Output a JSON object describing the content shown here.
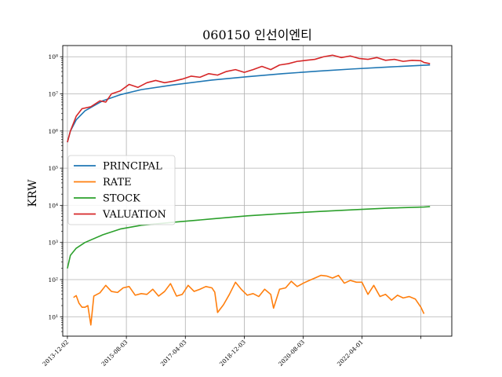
{
  "chart_data": {
    "type": "line",
    "title": "060150 인선이엔티",
    "ylabel": "KRW",
    "xlabel": "",
    "yscale": "log",
    "ylim": [
      3,
      200000000
    ],
    "xlim": [
      "2013-10-15",
      "2024-10-15"
    ],
    "grid": true,
    "legend_position": "center-left",
    "x_ticks": [
      "2013-12-02",
      "2015-08-03",
      "2017-04-03",
      "2018-12-03",
      "2020-08-03",
      "2022-04-01",
      "2023-12-01"
    ],
    "x_tick_labels": [
      "2013-12-02",
      "2015-08-03",
      "2017-04-03",
      "2018-12-03",
      "2020-08-03",
      "2022-04-01",
      ""
    ],
    "y_ticks": [
      10,
      100,
      1000,
      10000,
      100000,
      1000000,
      10000000,
      100000000
    ],
    "y_tick_labels": [
      "10¹",
      "10²",
      "10³",
      "10⁴",
      "10⁵",
      "10⁶",
      "10⁷",
      "10⁸"
    ],
    "series": [
      {
        "name": "PRINCIPAL",
        "color": "#1f77b4",
        "points": [
          [
            "2013-12-02",
            500000
          ],
          [
            "2014-01-02",
            1000000
          ],
          [
            "2014-03-03",
            2000000
          ],
          [
            "2014-06-02",
            3500000
          ],
          [
            "2014-12-01",
            6500000
          ],
          [
            "2015-06-01",
            9500000
          ],
          [
            "2016-01-04",
            13000000
          ],
          [
            "2016-12-01",
            17500000
          ],
          [
            "2018-01-02",
            23500000
          ],
          [
            "2019-01-02",
            29000000
          ],
          [
            "2020-01-02",
            35000000
          ],
          [
            "2021-01-04",
            41000000
          ],
          [
            "2022-01-03",
            47000000
          ],
          [
            "2023-01-02",
            53000000
          ],
          [
            "2024-01-02",
            59000000
          ],
          [
            "2024-03-04",
            60000000
          ]
        ]
      },
      {
        "name": "RATE",
        "color": "#ff7f0e",
        "points": [
          [
            "2014-02-03",
            33
          ],
          [
            "2014-03-03",
            37
          ],
          [
            "2014-04-01",
            23
          ],
          [
            "2014-05-02",
            18
          ],
          [
            "2014-06-02",
            18
          ],
          [
            "2014-07-01",
            20
          ],
          [
            "2014-08-01",
            6
          ],
          [
            "2014-09-01",
            36
          ],
          [
            "2014-11-03",
            44
          ],
          [
            "2015-01-02",
            70
          ],
          [
            "2015-03-02",
            48
          ],
          [
            "2015-05-04",
            45
          ],
          [
            "2015-07-01",
            60
          ],
          [
            "2015-09-01",
            65
          ],
          [
            "2015-11-02",
            38
          ],
          [
            "2016-01-04",
            42
          ],
          [
            "2016-03-02",
            40
          ],
          [
            "2016-05-02",
            55
          ],
          [
            "2016-07-01",
            36
          ],
          [
            "2016-09-01",
            48
          ],
          [
            "2016-11-01",
            78
          ],
          [
            "2017-01-02",
            36
          ],
          [
            "2017-03-02",
            40
          ],
          [
            "2017-05-02",
            70
          ],
          [
            "2017-07-03",
            48
          ],
          [
            "2017-09-01",
            55
          ],
          [
            "2017-11-01",
            65
          ],
          [
            "2018-01-02",
            60
          ],
          [
            "2018-02-01",
            46
          ],
          [
            "2018-03-02",
            13
          ],
          [
            "2018-05-02",
            21
          ],
          [
            "2018-07-02",
            40
          ],
          [
            "2018-09-03",
            85
          ],
          [
            "2018-11-01",
            55
          ],
          [
            "2019-01-02",
            38
          ],
          [
            "2019-03-04",
            42
          ],
          [
            "2019-05-02",
            35
          ],
          [
            "2019-07-01",
            55
          ],
          [
            "2019-09-02",
            40
          ],
          [
            "2019-10-01",
            17
          ],
          [
            "2019-12-02",
            55
          ],
          [
            "2020-02-03",
            60
          ],
          [
            "2020-04-01",
            90
          ],
          [
            "2020-06-01",
            65
          ],
          [
            "2020-08-03",
            80
          ],
          [
            "2020-10-05",
            95
          ],
          [
            "2020-12-01",
            110
          ],
          [
            "2021-02-01",
            130
          ],
          [
            "2021-04-01",
            125
          ],
          [
            "2021-06-01",
            110
          ],
          [
            "2021-08-02",
            130
          ],
          [
            "2021-10-01",
            80
          ],
          [
            "2021-12-01",
            95
          ],
          [
            "2022-02-03",
            85
          ],
          [
            "2022-04-01",
            85
          ],
          [
            "2022-06-02",
            40
          ],
          [
            "2022-08-01",
            70
          ],
          [
            "2022-10-04",
            35
          ],
          [
            "2022-12-01",
            40
          ],
          [
            "2023-02-01",
            28
          ],
          [
            "2023-04-03",
            38
          ],
          [
            "2023-06-01",
            32
          ],
          [
            "2023-08-01",
            35
          ],
          [
            "2023-10-04",
            30
          ],
          [
            "2023-12-01",
            18
          ],
          [
            "2024-01-02",
            12
          ]
        ]
      },
      {
        "name": "STOCK",
        "color": "#2ca02c",
        "points": [
          [
            "2013-12-02",
            200
          ],
          [
            "2014-01-02",
            450
          ],
          [
            "2014-03-03",
            700
          ],
          [
            "2014-06-02",
            1000
          ],
          [
            "2014-12-01",
            1600
          ],
          [
            "2015-06-01",
            2300
          ],
          [
            "2016-01-04",
            2900
          ],
          [
            "2016-12-01",
            3500
          ],
          [
            "2018-01-02",
            4300
          ],
          [
            "2019-01-02",
            5200
          ],
          [
            "2020-01-02",
            6000
          ],
          [
            "2021-01-04",
            6800
          ],
          [
            "2022-01-03",
            7600
          ],
          [
            "2023-01-02",
            8400
          ],
          [
            "2024-01-02",
            9000
          ],
          [
            "2024-03-04",
            9200
          ]
        ]
      },
      {
        "name": "VALUATION",
        "color": "#d62728",
        "points": [
          [
            "2013-12-02",
            500000
          ],
          [
            "2014-01-02",
            1000000
          ],
          [
            "2014-03-03",
            2500000
          ],
          [
            "2014-05-02",
            4000000
          ],
          [
            "2014-08-01",
            4500000
          ],
          [
            "2014-11-03",
            6500000
          ],
          [
            "2015-01-02",
            6000000
          ],
          [
            "2015-03-02",
            10000000
          ],
          [
            "2015-06-01",
            12000000
          ],
          [
            "2015-09-01",
            18000000
          ],
          [
            "2015-12-01",
            15000000
          ],
          [
            "2016-03-02",
            20000000
          ],
          [
            "2016-06-01",
            23000000
          ],
          [
            "2016-09-01",
            20000000
          ],
          [
            "2016-12-01",
            22000000
          ],
          [
            "2017-03-02",
            25000000
          ],
          [
            "2017-06-01",
            30000000
          ],
          [
            "2017-09-01",
            28000000
          ],
          [
            "2017-12-01",
            35000000
          ],
          [
            "2018-03-02",
            32000000
          ],
          [
            "2018-06-01",
            40000000
          ],
          [
            "2018-09-03",
            45000000
          ],
          [
            "2018-12-03",
            38000000
          ],
          [
            "2019-03-04",
            45000000
          ],
          [
            "2019-06-03",
            55000000
          ],
          [
            "2019-09-02",
            45000000
          ],
          [
            "2019-12-02",
            60000000
          ],
          [
            "2020-03-02",
            65000000
          ],
          [
            "2020-06-01",
            75000000
          ],
          [
            "2020-09-01",
            80000000
          ],
          [
            "2020-12-01",
            85000000
          ],
          [
            "2021-03-02",
            100000000
          ],
          [
            "2021-06-01",
            110000000
          ],
          [
            "2021-09-01",
            95000000
          ],
          [
            "2021-12-01",
            105000000
          ],
          [
            "2022-03-02",
            90000000
          ],
          [
            "2022-06-02",
            85000000
          ],
          [
            "2022-09-01",
            95000000
          ],
          [
            "2022-12-01",
            80000000
          ],
          [
            "2023-03-02",
            85000000
          ],
          [
            "2023-06-01",
            75000000
          ],
          [
            "2023-09-01",
            80000000
          ],
          [
            "2023-12-01",
            78000000
          ],
          [
            "2024-01-02",
            70000000
          ],
          [
            "2024-03-04",
            65000000
          ]
        ]
      }
    ]
  }
}
